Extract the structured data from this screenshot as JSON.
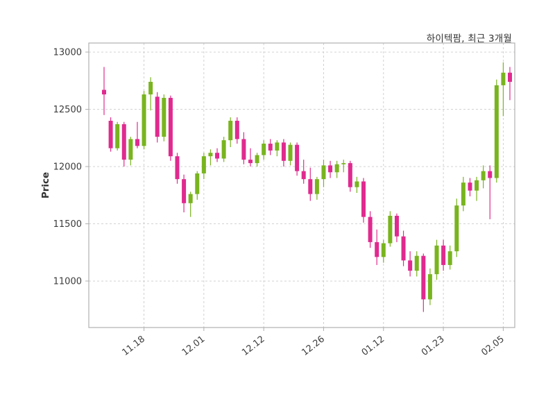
{
  "title": "하이텍팜, 최근 3개월",
  "chart_data": {
    "type": "candlestick",
    "title": "하이텍팜, 최근 3개월",
    "ylabel": "Price",
    "ylim": [
      10594,
      13079
    ],
    "y_ticks": [
      11000,
      11500,
      12000,
      12500,
      13000
    ],
    "x_ticks": [
      {
        "index": 6,
        "label": "11.18"
      },
      {
        "index": 15,
        "label": "12.01"
      },
      {
        "index": 24,
        "label": "12.12"
      },
      {
        "index": 33,
        "label": "12.26"
      },
      {
        "index": 42,
        "label": "01.12"
      },
      {
        "index": 51,
        "label": "01.23"
      },
      {
        "index": 60,
        "label": "02.05"
      }
    ],
    "colors": {
      "up": "#79b41e",
      "down": "#e02a8f",
      "grid": "#cccccc",
      "spine": "#b0b0b0",
      "tick_text": "#3b3b3b"
    },
    "grid": "both-dashed",
    "legend": "none",
    "ohlc_note": "arrays are [open, high, low, close]",
    "ohlc": [
      [
        12670,
        12870,
        12450,
        12630
      ],
      [
        12400,
        12430,
        12130,
        12160
      ],
      [
        12160,
        12390,
        12140,
        12370
      ],
      [
        12370,
        12390,
        12000,
        12060
      ],
      [
        12060,
        12260,
        12010,
        12240
      ],
      [
        12240,
        12390,
        12160,
        12180
      ],
      [
        12180,
        12660,
        12150,
        12630
      ],
      [
        12630,
        12780,
        12490,
        12740
      ],
      [
        12610,
        12650,
        12210,
        12260
      ],
      [
        12260,
        12630,
        12220,
        12600
      ],
      [
        12600,
        12620,
        12050,
        12090
      ],
      [
        12090,
        12120,
        11850,
        11890
      ],
      [
        11890,
        11930,
        11600,
        11680
      ],
      [
        11680,
        11780,
        11560,
        11760
      ],
      [
        11760,
        11960,
        11710,
        11940
      ],
      [
        11940,
        12120,
        11890,
        12090
      ],
      [
        12090,
        12150,
        12010,
        12120
      ],
      [
        12120,
        12160,
        12040,
        12070
      ],
      [
        12070,
        12260,
        12040,
        12230
      ],
      [
        12230,
        12430,
        12170,
        12400
      ],
      [
        12400,
        12430,
        12200,
        12240
      ],
      [
        12240,
        12300,
        12020,
        12060
      ],
      [
        12060,
        12160,
        12000,
        12030
      ],
      [
        12030,
        12120,
        12000,
        12100
      ],
      [
        12100,
        12230,
        12060,
        12200
      ],
      [
        12200,
        12240,
        12100,
        12140
      ],
      [
        12140,
        12230,
        12090,
        12210
      ],
      [
        12210,
        12240,
        12000,
        12050
      ],
      [
        12050,
        12210,
        12010,
        12190
      ],
      [
        12190,
        12210,
        11920,
        11960
      ],
      [
        11960,
        12060,
        11850,
        11890
      ],
      [
        11890,
        11990,
        11700,
        11760
      ],
      [
        11760,
        11910,
        11710,
        11890
      ],
      [
        11890,
        12060,
        11820,
        12010
      ],
      [
        12010,
        12050,
        11900,
        11950
      ],
      [
        11950,
        12050,
        11900,
        12020
      ],
      [
        12020,
        12060,
        11950,
        12030
      ],
      [
        12030,
        12050,
        11780,
        11820
      ],
      [
        11820,
        11910,
        11770,
        11870
      ],
      [
        11870,
        11900,
        11510,
        11560
      ],
      [
        11560,
        11610,
        11290,
        11340
      ],
      [
        11340,
        11450,
        11140,
        11210
      ],
      [
        11210,
        11360,
        11160,
        11330
      ],
      [
        11330,
        11610,
        11300,
        11570
      ],
      [
        11570,
        11590,
        11340,
        11390
      ],
      [
        11390,
        11440,
        11130,
        11180
      ],
      [
        11180,
        11260,
        11040,
        11090
      ],
      [
        11090,
        11260,
        11040,
        11220
      ],
      [
        11220,
        11240,
        10730,
        10840
      ],
      [
        10840,
        11110,
        10790,
        11060
      ],
      [
        11060,
        11360,
        11010,
        11310
      ],
      [
        11310,
        11360,
        11090,
        11140
      ],
      [
        11140,
        11310,
        11100,
        11260
      ],
      [
        11260,
        11720,
        11210,
        11660
      ],
      [
        11660,
        11910,
        11610,
        11860
      ],
      [
        11860,
        11900,
        11740,
        11790
      ],
      [
        11790,
        11910,
        11700,
        11880
      ],
      [
        11880,
        12010,
        11810,
        11960
      ],
      [
        11960,
        12010,
        11540,
        11900
      ],
      [
        11900,
        12760,
        11860,
        12710
      ],
      [
        12710,
        12910,
        12440,
        12820
      ],
      [
        12820,
        12870,
        12580,
        12740
      ]
    ]
  }
}
